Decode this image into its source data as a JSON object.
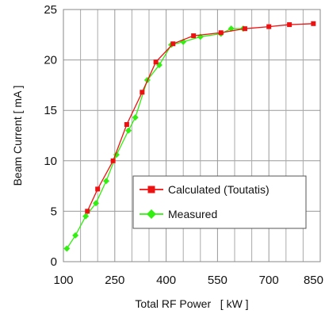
{
  "chart_data": {
    "type": "line",
    "xlabel": "Total RF Power   [ kW ]",
    "ylabel": "Beam Current [ mA ]",
    "xlim": [
      100,
      850
    ],
    "ylim": [
      0,
      25
    ],
    "x_ticks": [
      "100",
      "250",
      "400",
      "550",
      "700",
      "850"
    ],
    "y_ticks": [
      "0",
      "5",
      "10",
      "15",
      "20",
      "25"
    ],
    "grid": true,
    "legend_position": "lower-right",
    "series": [
      {
        "name": "Calculated (Toutatis)",
        "color": "#ee1111",
        "marker": "square",
        "points": [
          [
            170,
            5.0
          ],
          [
            200,
            7.2
          ],
          [
            245,
            10.0
          ],
          [
            285,
            13.6
          ],
          [
            330,
            16.8
          ],
          [
            370,
            19.8
          ],
          [
            420,
            21.6
          ],
          [
            480,
            22.4
          ],
          [
            560,
            22.7
          ],
          [
            630,
            23.1
          ],
          [
            700,
            23.3
          ],
          [
            760,
            23.5
          ],
          [
            830,
            23.6
          ]
        ]
      },
      {
        "name": "Measured",
        "color": "#33ee11",
        "marker": "diamond",
        "points": [
          [
            110,
            1.3
          ],
          [
            135,
            2.6
          ],
          [
            165,
            4.5
          ],
          [
            195,
            5.8
          ],
          [
            225,
            8.0
          ],
          [
            255,
            10.6
          ],
          [
            290,
            13.0
          ],
          [
            310,
            14.3
          ],
          [
            345,
            18.0
          ],
          [
            380,
            19.5
          ],
          [
            415,
            21.5
          ],
          [
            450,
            21.8
          ],
          [
            500,
            22.3
          ],
          [
            560,
            22.6
          ],
          [
            590,
            23.1
          ],
          [
            625,
            23.1
          ]
        ]
      }
    ]
  }
}
